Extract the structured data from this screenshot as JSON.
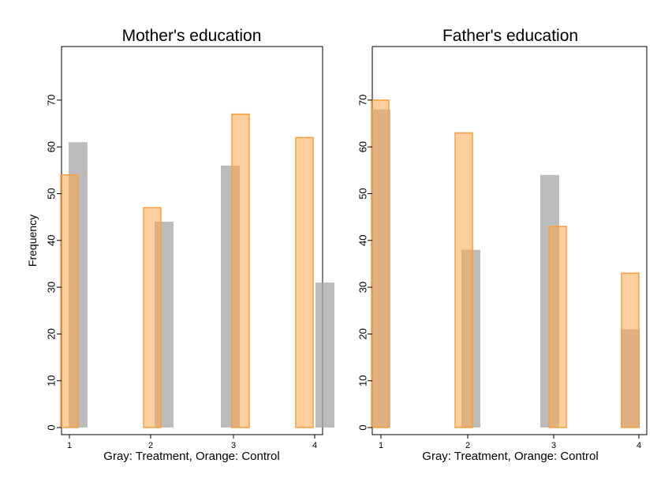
{
  "chart_data": [
    {
      "type": "bar",
      "title": "Mother's education",
      "xlabel": "Gray: Treatment, Orange: Control",
      "ylabel": "Frequency",
      "categories": [
        "1",
        "2",
        "3",
        "4"
      ],
      "ylim": [
        0,
        80
      ],
      "yticks": [
        0,
        10,
        20,
        30,
        40,
        50,
        60,
        70
      ],
      "series": [
        {
          "name": "Treatment",
          "color": "#a6a6a6",
          "values": [
            61,
            44,
            56,
            31
          ]
        },
        {
          "name": "Control",
          "color": "#fda54b",
          "values": [
            54,
            47,
            67,
            62
          ]
        }
      ]
    },
    {
      "type": "bar",
      "title": "Father's education",
      "xlabel": "Gray: Treatment, Orange: Control",
      "ylabel": "",
      "categories": [
        "1",
        "2",
        "3",
        "4"
      ],
      "ylim": [
        0,
        80
      ],
      "yticks": [
        0,
        10,
        20,
        30,
        40,
        50,
        60,
        70
      ],
      "series": [
        {
          "name": "Treatment",
          "color": "#a6a6a6",
          "values": [
            68,
            38,
            54,
            21
          ]
        },
        {
          "name": "Control",
          "color": "#fda54b",
          "values": [
            70,
            63,
            43,
            33
          ]
        }
      ]
    }
  ]
}
